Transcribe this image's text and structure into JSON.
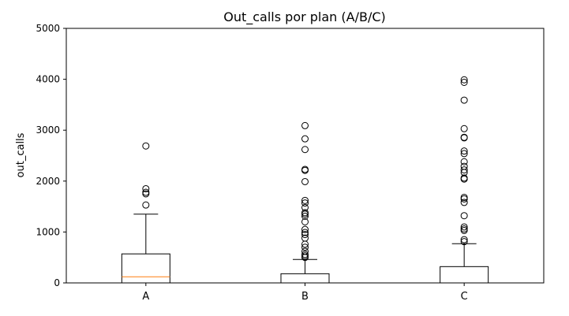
{
  "chart_data": {
    "type": "box",
    "title": "Out_calls por plan (A/B/C)",
    "xlabel": "",
    "ylabel": "out_calls",
    "ylim": [
      0,
      5000
    ],
    "yticks": [
      0,
      1000,
      2000,
      3000,
      4000,
      5000
    ],
    "categories": [
      "A",
      "B",
      "C"
    ],
    "median_color": "#ff7f0e",
    "box_color": "#000000",
    "boxes": [
      {
        "category": "A",
        "whisker_low": 0,
        "q1": 0,
        "median": 120,
        "q3": 570,
        "whisker_high": 1350,
        "outliers": [
          1530,
          1750,
          1780,
          1850,
          2690
        ]
      },
      {
        "category": "B",
        "whisker_low": 0,
        "q1": 0,
        "median": 0,
        "q3": 180,
        "whisker_high": 460,
        "outliers": [
          500,
          530,
          560,
          620,
          700,
          760,
          880,
          950,
          990,
          1050,
          1200,
          1310,
          1350,
          1380,
          1480,
          1570,
          1620,
          1990,
          2210,
          2230,
          2620,
          2830,
          3090
        ]
      },
      {
        "category": "C",
        "whisker_low": 0,
        "q1": 0,
        "median": 0,
        "q3": 320,
        "whisker_high": 770,
        "outliers": [
          810,
          850,
          1030,
          1060,
          1100,
          1320,
          1580,
          1650,
          1680,
          2040,
          2060,
          2170,
          2220,
          2290,
          2380,
          2540,
          2590,
          2850,
          2860,
          3030,
          3590,
          3940,
          3990
        ]
      }
    ]
  }
}
